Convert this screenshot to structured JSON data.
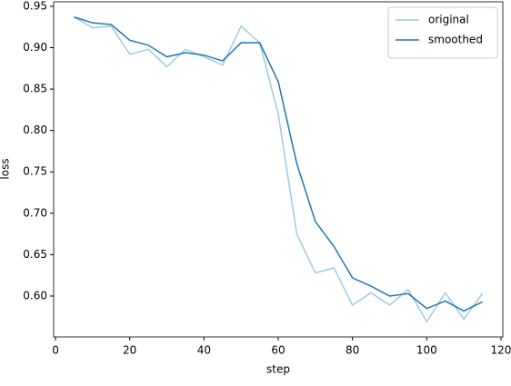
{
  "chart_data": {
    "type": "line",
    "x": [
      5,
      10,
      15,
      20,
      25,
      30,
      35,
      40,
      45,
      50,
      55,
      60,
      65,
      70,
      75,
      80,
      85,
      90,
      95,
      100,
      105,
      110,
      115
    ],
    "series": [
      {
        "name": "original",
        "color": "#9ecae1",
        "values": [
          0.937,
          0.924,
          0.926,
          0.892,
          0.898,
          0.877,
          0.898,
          0.889,
          0.879,
          0.926,
          0.906,
          0.82,
          0.675,
          0.628,
          0.634,
          0.589,
          0.604,
          0.589,
          0.608,
          0.569,
          0.604,
          0.572,
          0.603
        ]
      },
      {
        "name": "smoothed",
        "color": "#1f77b4",
        "values": [
          0.937,
          0.93,
          0.928,
          0.909,
          0.903,
          0.889,
          0.894,
          0.891,
          0.884,
          0.906,
          0.906,
          0.859,
          0.76,
          0.69,
          0.66,
          0.622,
          0.612,
          0.6,
          0.603,
          0.585,
          0.594,
          0.582,
          0.593
        ]
      }
    ],
    "x_label": "step",
    "y_label": "loss",
    "xlim": [
      -0.5,
      120.5
    ],
    "ylim": [
      0.5506,
      0.9554
    ],
    "xticks": [
      0,
      20,
      40,
      60,
      80,
      100,
      120
    ],
    "yticks": [
      {
        "value": 0.6,
        "label": "0.60"
      },
      0.65,
      {
        "value": 0.7,
        "label": "0.70"
      },
      0.75,
      {
        "value": 0.8,
        "label": "0.80"
      },
      0.85,
      {
        "value": 0.9,
        "label": "0.90"
      },
      0.95
    ],
    "legend": "upper right"
  }
}
